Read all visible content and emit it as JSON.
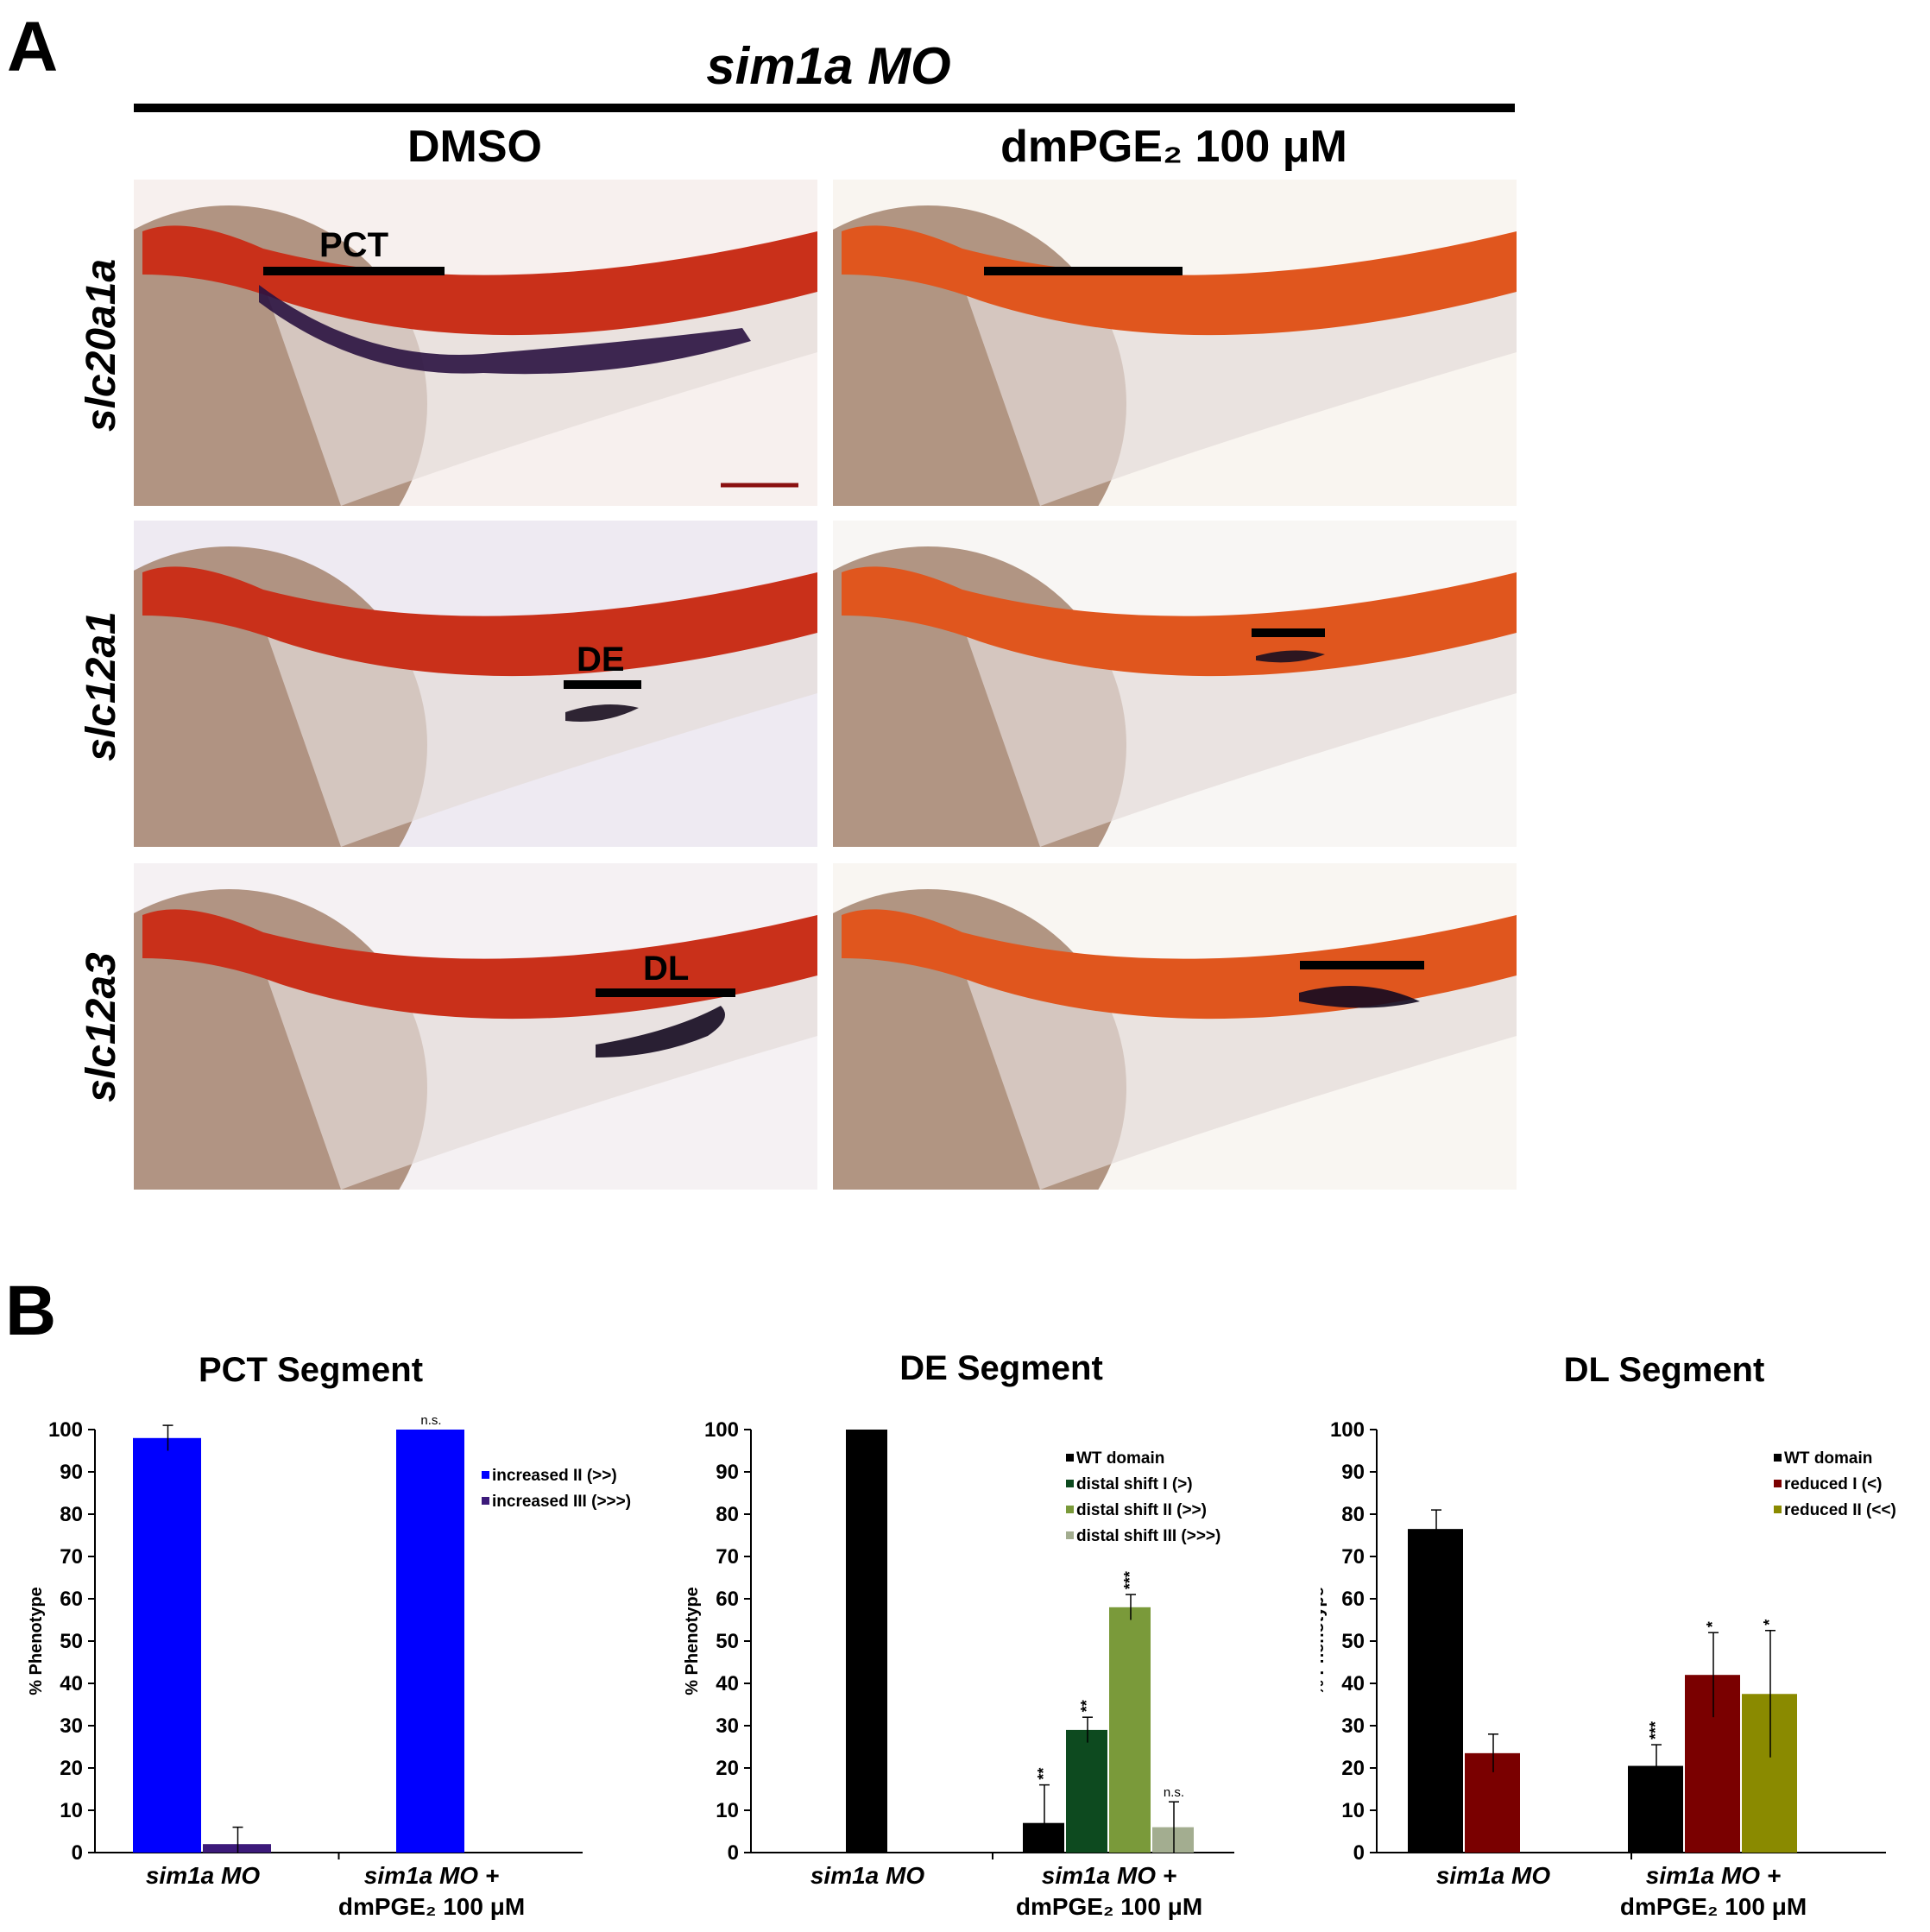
{
  "panel_a": {
    "letter": "A",
    "title": "sim1a MO",
    "columns": [
      "DMSO",
      "dmPGE₂ 100 μM"
    ],
    "rows": [
      "slc20a1a",
      "slc12a1",
      "slc12a3"
    ],
    "segment_labels": {
      "pct": "PCT",
      "de": "DE",
      "dl": "DL"
    }
  },
  "panel_b": {
    "letter": "B"
  },
  "colors": {
    "blue": "#0000ff",
    "purple": "#3c1a7a",
    "black": "#000000",
    "dark_green": "#0d4a1f",
    "green": "#7a9a3a",
    "pale_green": "#a3ad90",
    "dark_red": "#7a0000",
    "olive": "#8a8a00"
  },
  "chart_data": [
    {
      "type": "bar",
      "title": "PCT Segment",
      "ylabel": "% Phenotype",
      "ylim": [
        0,
        100
      ],
      "yticks": [
        0,
        10,
        20,
        30,
        40,
        50,
        60,
        70,
        80,
        90,
        100
      ],
      "categories": [
        "sim1a MO",
        "sim1a MO +\ndmPGE₂ 100 μM"
      ],
      "series": [
        {
          "name": "increased II (>>)",
          "color": "#0000ff",
          "values": [
            98,
            100
          ],
          "errors": [
            3,
            0
          ],
          "annotations": [
            "",
            "n.s."
          ]
        },
        {
          "name": "increased III (>>>)",
          "color": "#3c1a7a",
          "values": [
            2,
            0
          ],
          "errors": [
            4,
            0
          ],
          "annotations": [
            "",
            ""
          ]
        }
      ],
      "legend": "top-right"
    },
    {
      "type": "bar",
      "title": "DE Segment",
      "ylabel": "% Phenotype",
      "ylim": [
        0,
        100
      ],
      "yticks": [
        0,
        10,
        20,
        30,
        40,
        50,
        60,
        70,
        80,
        90,
        100
      ],
      "categories": [
        "sim1a MO",
        "sim1a MO +\ndmPGE₂ 100 μM"
      ],
      "series": [
        {
          "name": "WT domain",
          "color": "#000000",
          "values": [
            100,
            7
          ],
          "errors": [
            0,
            9
          ],
          "annotations": [
            "",
            "**"
          ]
        },
        {
          "name": "distal shift I (>)",
          "color": "#0d4a1f",
          "values": [
            0,
            29
          ],
          "errors": [
            0,
            3
          ],
          "annotations": [
            "",
            "**"
          ]
        },
        {
          "name": "distal shift II (>>)",
          "color": "#7a9a3a",
          "values": [
            0,
            58
          ],
          "errors": [
            0,
            3
          ],
          "annotations": [
            "",
            "***"
          ]
        },
        {
          "name": "distal shift III (>>>)",
          "color": "#a3ad90",
          "values": [
            0,
            6
          ],
          "errors": [
            0,
            6
          ],
          "annotations": [
            "",
            "n.s."
          ]
        }
      ],
      "legend": "top-right"
    },
    {
      "type": "bar",
      "title": "DL Segment",
      "ylabel": "% Phenotype",
      "ylim": [
        0,
        100
      ],
      "yticks": [
        0,
        10,
        20,
        30,
        40,
        50,
        60,
        70,
        80,
        90,
        100
      ],
      "categories": [
        "sim1a MO",
        "sim1a MO +\ndmPGE₂ 100 μM"
      ],
      "series": [
        {
          "name": "WT domain",
          "color": "#000000",
          "values": [
            76.5,
            20.5
          ],
          "errors": [
            4.5,
            5
          ],
          "annotations": [
            "",
            "***"
          ]
        },
        {
          "name": "reduced I (<)",
          "color": "#7a0000",
          "values": [
            23.5,
            42
          ],
          "errors": [
            4.5,
            10
          ],
          "annotations": [
            "",
            "*"
          ]
        },
        {
          "name": "reduced II (<<)",
          "color": "#8a8a00",
          "values": [
            0,
            37.5
          ],
          "errors": [
            0,
            15
          ],
          "annotations": [
            "",
            "*"
          ]
        }
      ],
      "legend": "top-right"
    }
  ]
}
